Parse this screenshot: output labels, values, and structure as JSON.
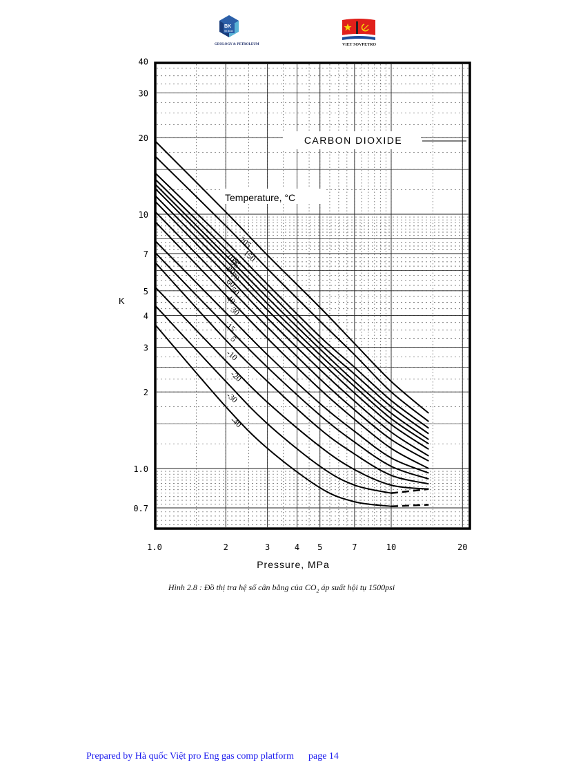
{
  "header": {
    "logo_left": {
      "name": "bk-geology-petroleum-logo",
      "text_main": "BK",
      "text_sub": "TP. HCM",
      "caption": "GEOLOGY & PETROLEUM",
      "colors": [
        "#2c5fa8",
        "#5ab3d6",
        "#1a3c7a"
      ]
    },
    "logo_right": {
      "name": "vietsovpetro-logo",
      "caption": "VIET SOVPETRO",
      "colors": [
        "#e0201b",
        "#f5d90a",
        "#1a4c9a"
      ]
    }
  },
  "chart_data": {
    "type": "line",
    "title": "CARBON DIOXIDE",
    "legend_title": "Temperature, °C",
    "xlabel": "Pressure, MPa",
    "ylabel": "K",
    "xscale": "log",
    "yscale": "log",
    "xlim": [
      1.0,
      20
    ],
    "ylim": [
      0.6,
      40
    ],
    "x_ticks": [
      "1.0",
      "2",
      "3",
      "4",
      "5",
      "7",
      "10",
      "20"
    ],
    "x_tick_values": [
      1,
      2,
      3,
      4,
      5,
      7,
      10,
      20
    ],
    "y_ticks": [
      "40",
      "30",
      "20",
      "10",
      "7",
      "5",
      "4",
      "3",
      "2",
      "1.0",
      "0.7"
    ],
    "y_tick_values": [
      40,
      30,
      20,
      10,
      7,
      5,
      4,
      3,
      2,
      1.0,
      0.7
    ],
    "grid": true,
    "x": [
      1.0,
      2.0,
      3.0,
      5.0,
      7.0,
      10.0,
      14.4
    ],
    "series": [
      {
        "name": "205",
        "values": [
          19.5,
          10.2,
          6.9,
          4.3,
          3.1,
          2.2,
          1.65
        ]
      },
      {
        "name": "150",
        "values": [
          17.0,
          9.0,
          6.1,
          3.8,
          2.8,
          2.0,
          1.53
        ]
      },
      {
        "name": "105",
        "values": [
          14.6,
          7.8,
          5.3,
          3.3,
          2.5,
          1.85,
          1.44
        ]
      },
      {
        "name": "95",
        "values": [
          13.8,
          7.3,
          5.0,
          3.1,
          2.35,
          1.75,
          1.37
        ]
      },
      {
        "name": "80",
        "values": [
          13.2,
          6.9,
          4.7,
          2.95,
          2.2,
          1.65,
          1.3
        ]
      },
      {
        "name": "70",
        "values": [
          12.7,
          6.6,
          4.45,
          2.8,
          2.1,
          1.57,
          1.25
        ]
      },
      {
        "name": "60",
        "values": [
          11.9,
          6.2,
          4.2,
          2.65,
          1.98,
          1.49,
          1.19
        ]
      },
      {
        "name": "50",
        "values": [
          11.3,
          5.8,
          3.9,
          2.45,
          1.84,
          1.39,
          1.12
        ]
      },
      {
        "name": "40",
        "values": [
          10.3,
          5.3,
          3.6,
          2.25,
          1.7,
          1.3,
          1.07
        ]
      },
      {
        "name": "30",
        "values": [
          9.4,
          4.8,
          3.25,
          2.05,
          1.56,
          1.2,
          1.0
        ]
      },
      {
        "name": "15",
        "values": [
          7.9,
          4.1,
          2.8,
          1.8,
          1.4,
          1.1,
          0.96
        ]
      },
      {
        "name": "5",
        "values": [
          7.1,
          3.65,
          2.5,
          1.62,
          1.27,
          1.02,
          0.91
        ]
      },
      {
        "name": "-10",
        "values": [
          6.5,
          3.2,
          2.2,
          1.43,
          1.14,
          0.94,
          0.87
        ]
      },
      {
        "name": "-20",
        "values": [
          5.2,
          2.65,
          1.82,
          1.22,
          0.99,
          0.86,
          0.83
        ]
      },
      {
        "name": "-30",
        "values": [
          4.4,
          2.2,
          1.5,
          1.02,
          0.86,
          0.8,
          0.83
        ]
      },
      {
        "name": "-40",
        "values": [
          3.7,
          1.75,
          1.2,
          0.84,
          0.74,
          0.71,
          0.72
        ]
      }
    ],
    "dashed_tail_series": [
      "-30",
      "-40"
    ],
    "colors": {
      "line": "#000000",
      "grid_major": "#222222",
      "grid_minor": "#555555",
      "frame": "#000000"
    }
  },
  "caption": {
    "prefix": "Hình 2.8 : Đồ thị tra hệ số cân bằng của CO",
    "subscript": "2",
    "suffix": " áp suất hội tụ 1500psi"
  },
  "footer": {
    "prepared_by": "Prepared by Hà quốc Việt pro Eng gas comp platform",
    "page": "page 14",
    "color": "#1a1aee"
  }
}
